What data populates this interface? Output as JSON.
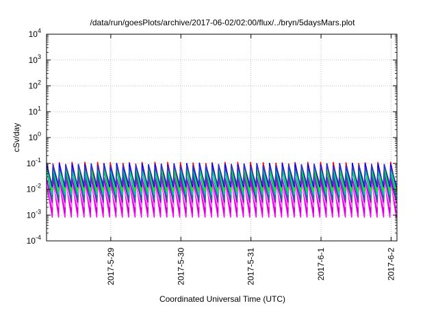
{
  "chart_data": {
    "type": "line",
    "title": "/data/run/goesPlots/archive/2017-06-02/02:00/flux/../bryn/5daysMars.plot",
    "xlabel": "Coordinated Universal Time (UTC)",
    "ylabel": "cSv/day",
    "yscale": "log",
    "ylim": [
      0.0001,
      10000
    ],
    "xlim": [
      "2017-05-28T02:00",
      "2017-06-02T02:00"
    ],
    "x_ticks": [
      "2017-5-29",
      "2017-5-30",
      "2017-5-31",
      "2017-6-1",
      "2017-6-2"
    ],
    "y_ticks": [
      {
        "base": "10",
        "exp": "-4"
      },
      {
        "base": "10",
        "exp": "-3"
      },
      {
        "base": "10",
        "exp": "-2"
      },
      {
        "base": "10",
        "exp": "-1"
      },
      {
        "base": "10",
        "exp": "0"
      },
      {
        "base": "10",
        "exp": "1"
      },
      {
        "base": "10",
        "exp": "2"
      },
      {
        "base": "10",
        "exp": "3"
      },
      {
        "base": "10",
        "exp": "4"
      }
    ],
    "grid": true,
    "legend": "none",
    "pattern": {
      "description": "repeating sawtooth: sharp rise to peak then decay",
      "cycles": 55
    },
    "series": [
      {
        "color": "#ff00ff",
        "peak": 0.02,
        "trough": 0.0008
      },
      {
        "color": "#cc00cc",
        "peak": 0.025,
        "trough": 0.0012
      },
      {
        "color": "#ff66ff",
        "peak": 0.015,
        "trough": 0.002
      },
      {
        "color": "#9900cc",
        "peak": 0.03,
        "trough": 0.003
      },
      {
        "color": "#ff0000",
        "peak": 0.1,
        "trough": 0.01
      },
      {
        "color": "#008080",
        "peak": 0.05,
        "trough": 0.004
      },
      {
        "color": "#00cccc",
        "peak": 0.06,
        "trough": 0.006
      },
      {
        "color": "#00ff00",
        "peak": 0.07,
        "trough": 0.008
      },
      {
        "color": "#0000ff",
        "peak": 0.09,
        "trough": 0.012
      },
      {
        "color": "#3333cc",
        "peak": 0.08,
        "trough": 0.015
      }
    ]
  }
}
